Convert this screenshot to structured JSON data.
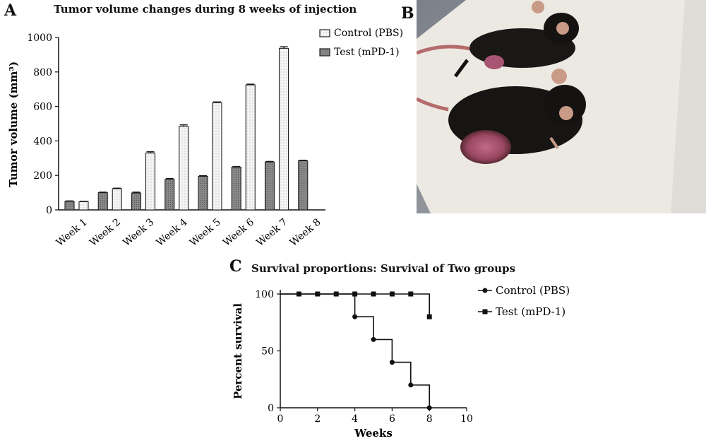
{
  "panels": {
    "a": "A",
    "b": "B",
    "c": "C"
  },
  "chart_data": [
    {
      "type": "bar",
      "title": "Tumor volume changes during 8 weeks of injection",
      "xlabel": "",
      "ylabel": "Tumor volume (mm³)",
      "ylim": [
        0,
        1000
      ],
      "yticks": [
        0,
        200,
        400,
        600,
        800,
        1000
      ],
      "categories": [
        "Week 1",
        "Week 2",
        "Week 3",
        "Week 4",
        "Week 5",
        "Week 6",
        "Week 7",
        "Week 8"
      ],
      "series": [
        {
          "name": "Test (mPD-1)",
          "color": "#7f7f7f",
          "pattern": "dense-dots",
          "values": [
            50,
            100,
            98,
            177,
            195,
            248,
            278,
            285
          ],
          "errors": [
            2,
            3,
            5,
            5,
            3,
            3,
            3,
            3
          ]
        },
        {
          "name": "Control (PBS)",
          "color": "#f2f2f2",
          "pattern": "light-dots",
          "values": [
            48,
            123,
            330,
            485,
            622,
            725,
            937,
            null
          ],
          "errors": [
            2,
            3,
            7,
            8,
            4,
            4,
            9,
            null
          ]
        }
      ],
      "legend": [
        "Control (PBS)",
        "Test (mPD-1)"
      ],
      "legend_position": "top-right",
      "grid": false
    },
    {
      "type": "line",
      "step": true,
      "title": "Survival proportions: Survival of Two groups",
      "xlabel": "Weeks",
      "ylabel": "Percent survival",
      "xlim": [
        0,
        10
      ],
      "ylim": [
        0,
        100
      ],
      "xticks": [
        0,
        2,
        4,
        6,
        8,
        10
      ],
      "yticks": [
        0,
        50,
        100
      ],
      "series": [
        {
          "name": "Control (PBS)",
          "marker": "circle",
          "x": [
            0,
            1,
            2,
            3,
            4,
            5,
            6,
            7,
            8
          ],
          "y": [
            100,
            100,
            100,
            100,
            80,
            60,
            40,
            20,
            0
          ],
          "markers_x": [
            4,
            5,
            6,
            7,
            8
          ],
          "markers_y": [
            80,
            60,
            40,
            20,
            0
          ]
        },
        {
          "name": "Test (mPD-1)",
          "marker": "square",
          "x": [
            0,
            1,
            2,
            3,
            4,
            5,
            6,
            7,
            8
          ],
          "y": [
            100,
            100,
            100,
            100,
            100,
            100,
            100,
            100,
            80
          ],
          "markers_x": [
            1,
            2,
            3,
            4,
            5,
            6,
            7,
            8
          ],
          "markers_y": [
            100,
            100,
            100,
            100,
            100,
            100,
            100,
            80
          ]
        }
      ],
      "legend": [
        "Control (PBS)",
        "Test (mPD-1)"
      ],
      "legend_position": "right",
      "grid": false
    }
  ],
  "photo": {
    "icon": "mice-photo",
    "colors": {
      "background": "#8d9298",
      "board": "#ece9e3",
      "fur": "#161513",
      "tumor": "#a85573",
      "ear": "#c99a86"
    }
  }
}
